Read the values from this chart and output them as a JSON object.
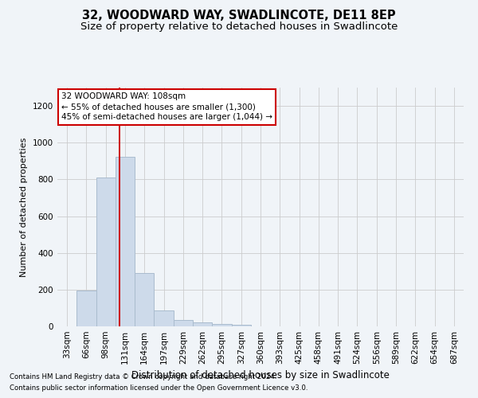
{
  "title": "32, WOODWARD WAY, SWADLINCOTE, DE11 8EP",
  "subtitle": "Size of property relative to detached houses in Swadlincote",
  "xlabel": "Distribution of detached houses by size in Swadlincote",
  "ylabel": "Number of detached properties",
  "footnote1": "Contains HM Land Registry data © Crown copyright and database right 2024.",
  "footnote2": "Contains public sector information licensed under the Open Government Licence v3.0.",
  "bin_labels": [
    "33sqm",
    "66sqm",
    "98sqm",
    "131sqm",
    "164sqm",
    "197sqm",
    "229sqm",
    "262sqm",
    "295sqm",
    "327sqm",
    "360sqm",
    "393sqm",
    "425sqm",
    "458sqm",
    "491sqm",
    "524sqm",
    "556sqm",
    "589sqm",
    "622sqm",
    "654sqm",
    "687sqm"
  ],
  "bar_values": [
    0,
    195,
    810,
    925,
    290,
    85,
    35,
    20,
    15,
    10,
    0,
    0,
    0,
    0,
    0,
    0,
    0,
    0,
    0,
    0,
    0
  ],
  "bar_color": "#cddaea",
  "bar_edge_color": "#aabcce",
  "bar_linewidth": 0.7,
  "vline_x": 2.72,
  "vline_color": "#cc0000",
  "vline_linewidth": 1.4,
  "ylim": [
    0,
    1300
  ],
  "yticks": [
    0,
    200,
    400,
    600,
    800,
    1000,
    1200
  ],
  "annotation_line1": "32 WOODWARD WAY: 108sqm",
  "annotation_line2": "← 55% of detached houses are smaller (1,300)",
  "annotation_line3": "45% of semi-detached houses are larger (1,044) →",
  "annotation_box_color": "#ffffff",
  "annotation_box_edge_color": "#cc0000",
  "annotation_fontsize": 7.5,
  "grid_color": "#cccccc",
  "background_color": "#f0f4f8",
  "title_fontsize": 10.5,
  "subtitle_fontsize": 9.5,
  "xlabel_fontsize": 8.5,
  "ylabel_fontsize": 8,
  "tick_fontsize": 7.5,
  "footnote_fontsize": 6.2
}
